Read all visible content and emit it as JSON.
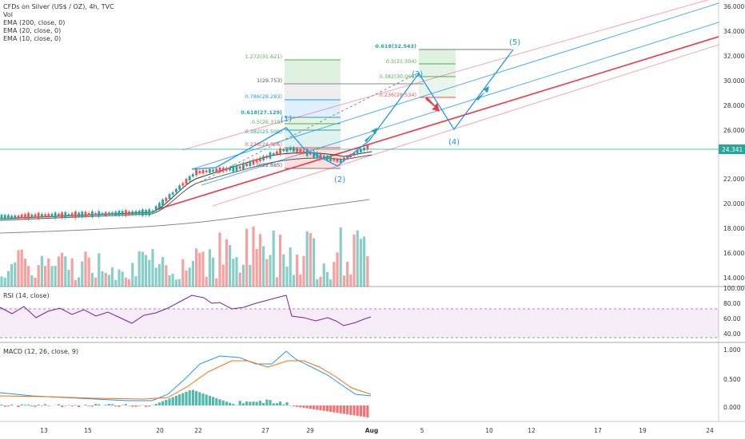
{
  "header": {
    "title": "CFDs on Silver (US$ / OZ), 4h, TVC",
    "indicators": [
      "Vol",
      "EMA (200, close, 0)",
      "EMA (20, close, 0)",
      "EMA (10, close, 0)"
    ]
  },
  "price_axis": {
    "labels": [
      "36.000",
      "34.000",
      "32.000",
      "30.000",
      "28.000",
      "26.000",
      "22.000",
      "20.000",
      "18.000",
      "16.000",
      "14.000"
    ],
    "current_price": "24.341",
    "current_price_color": "#26a69a"
  },
  "rsi": {
    "label": "RSI (14, close)",
    "axis_labels": [
      "100.00",
      "80.00",
      "60.00",
      "40.00"
    ]
  },
  "macd": {
    "label": "MACD (12, 26, close, 9)",
    "axis_labels": [
      "1.000",
      "0.500",
      "0.000"
    ]
  },
  "time_axis": {
    "labels": [
      "13",
      "15",
      "20",
      "22",
      "27",
      "29",
      "Aug",
      "5",
      "10",
      "12",
      "17",
      "19",
      "24"
    ]
  },
  "fib_left": {
    "levels": [
      "1.272(31.621)",
      "1(29.753)",
      "0.786(28.283)",
      "0.618(27.129)",
      "0.5(26.319)",
      "0.382(25.509)",
      "0.236(24.506)",
      "0(22.885)"
    ]
  },
  "fib_right": {
    "levels": [
      "0.618(32.543)",
      "0.5(31.304)",
      "0.382(30.069)",
      "0.236(28.534)"
    ]
  },
  "waves": {
    "labels": [
      "(1)",
      "(2)",
      "(3)",
      "(4)",
      "(5)"
    ]
  },
  "colors": {
    "up": "#26a69a",
    "down": "#ef5350",
    "channel_blue": "#2196f3",
    "channel_red": "#f23645",
    "rsi_band": "#9c27b0"
  }
}
